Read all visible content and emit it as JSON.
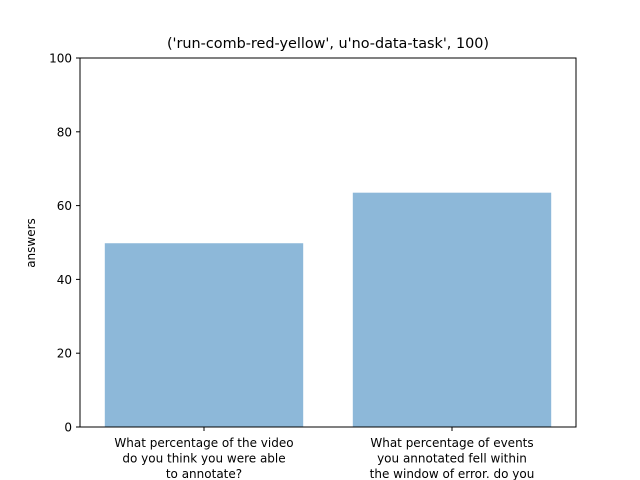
{
  "chart_data": {
    "type": "bar",
    "title": "('run-comb-red-yellow', u'no-data-task', 100)",
    "xlabel": "",
    "ylabel": "answers",
    "ylim": [
      0,
      100
    ],
    "yticks": [
      0,
      20,
      40,
      60,
      80,
      100
    ],
    "grid": false,
    "categories": [
      [
        "What percentage of the video",
        "do you think you were able",
        "to annotate?"
      ],
      [
        "What percentage of events",
        "you annotated fell within",
        "the window of error. do you"
      ]
    ],
    "values": [
      49.8,
      63.5
    ],
    "colors": {
      "bar": "#8db8d9",
      "axis": "#000000"
    }
  }
}
